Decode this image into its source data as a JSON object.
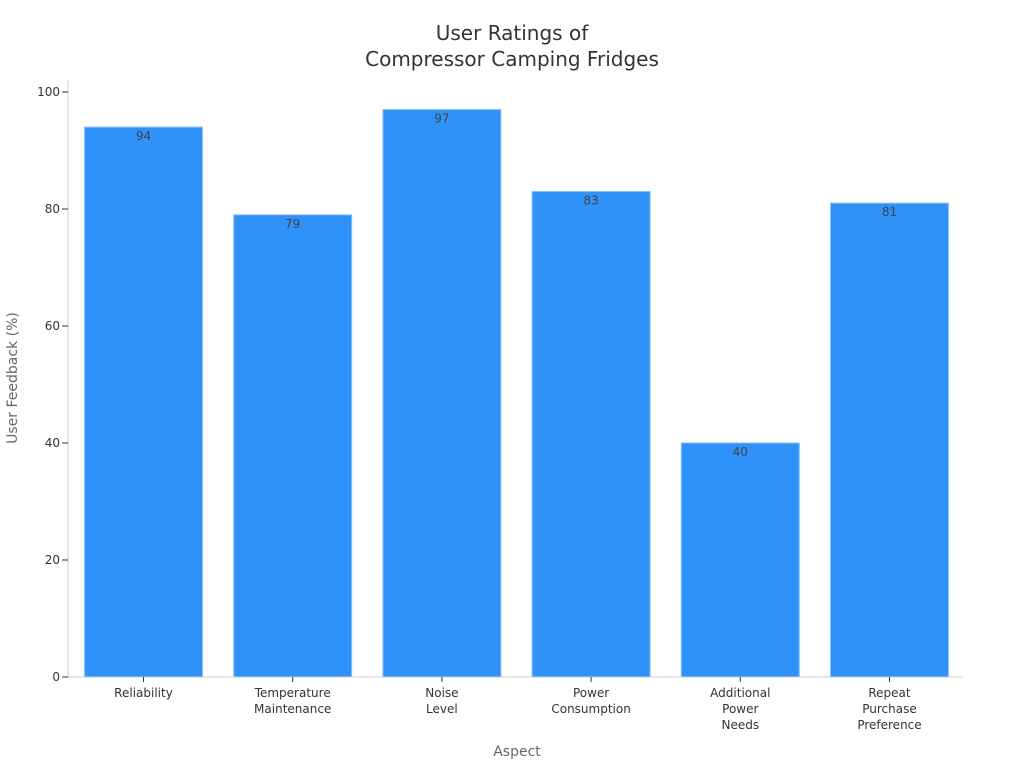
{
  "chart_data": {
    "type": "bar",
    "title": [
      "User Ratings of",
      "Compressor Camping Fridges"
    ],
    "xlabel": "Aspect",
    "ylabel": "User Feedback (%)",
    "categories": [
      [
        "Reliability"
      ],
      [
        "Temperature",
        "Maintenance"
      ],
      [
        "Noise",
        "Level"
      ],
      [
        "Power",
        "Consumption"
      ],
      [
        "Additional",
        "Power",
        "Needs"
      ],
      [
        "Repeat",
        "Purchase",
        "Preference"
      ]
    ],
    "values": [
      94,
      79,
      97,
      83,
      40,
      81
    ],
    "data_labels": [
      "94",
      "79",
      "97",
      "83",
      "40",
      "81"
    ],
    "ylim": [
      0,
      100
    ],
    "yticks": [
      0,
      20,
      40,
      60,
      80,
      100
    ],
    "ytick_labels": [
      "0",
      "20",
      "40",
      "60",
      "80",
      "100"
    ],
    "grid": false,
    "bar_color": "#2f92f8"
  }
}
